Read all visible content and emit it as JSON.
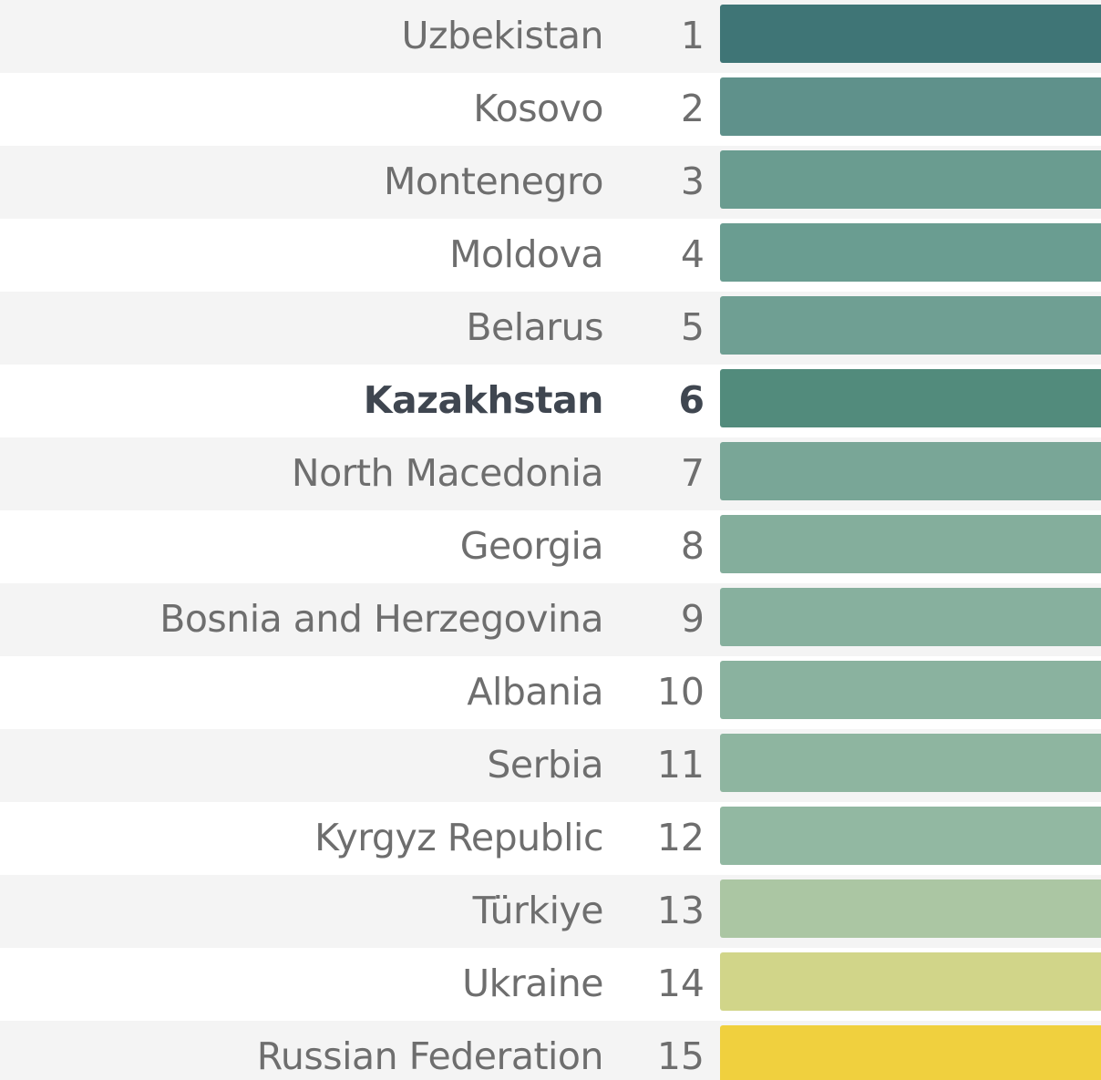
{
  "chart_data": {
    "type": "table",
    "highlight": "Kazakhstan",
    "rows": [
      {
        "country": "Uzbekistan",
        "rank": "1",
        "color": "#3f7576"
      },
      {
        "country": "Kosovo",
        "rank": "2",
        "color": "#5f918b"
      },
      {
        "country": "Montenegro",
        "rank": "3",
        "color": "#6a9c90"
      },
      {
        "country": "Moldova",
        "rank": "4",
        "color": "#6a9d91"
      },
      {
        "country": "Belarus",
        "rank": "5",
        "color": "#6f9f93"
      },
      {
        "country": "Kazakhstan",
        "rank": "6",
        "color": "#528b7c"
      },
      {
        "country": "North Macedonia",
        "rank": "7",
        "color": "#79a697"
      },
      {
        "country": "Georgia",
        "rank": "8",
        "color": "#84ae9c"
      },
      {
        "country": "Bosnia and Herzegovina",
        "rank": "9",
        "color": "#87b09e"
      },
      {
        "country": "Albania",
        "rank": "10",
        "color": "#8ab29f"
      },
      {
        "country": "Serbia",
        "rank": "11",
        "color": "#8eb5a0"
      },
      {
        "country": "Kyrgyz Republic",
        "rank": "12",
        "color": "#92b8a2"
      },
      {
        "country": "Türkiye",
        "rank": "13",
        "color": "#abc6a3"
      },
      {
        "country": "Ukraine",
        "rank": "14",
        "color": "#d1d589"
      },
      {
        "country": "Russian Federation",
        "rank": "15",
        "color": "#f0d03e"
      }
    ]
  }
}
